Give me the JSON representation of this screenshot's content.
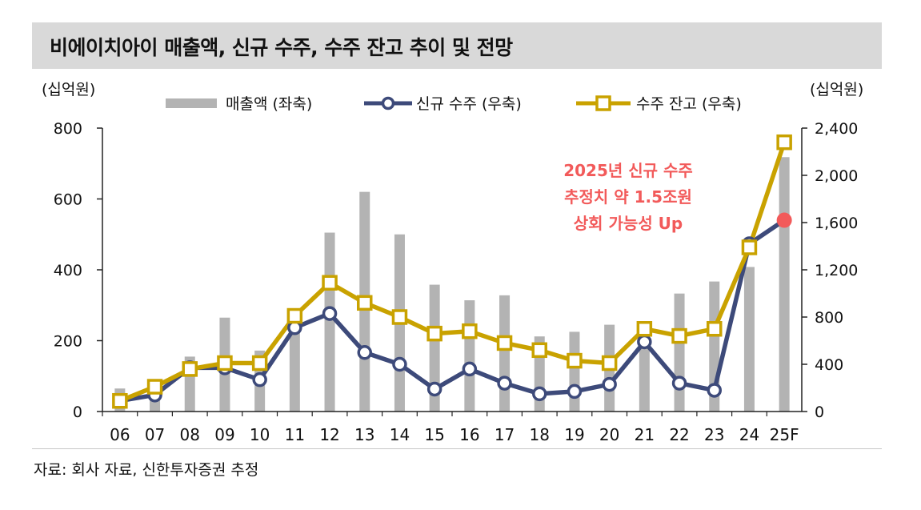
{
  "title": "비에이치아이 매출액, 신규 수주, 수주 잔고 추이 및 전망",
  "source": "자료: 회사 자료, 신한투자증권 추정",
  "colors": {
    "bar": "#b3b3b3",
    "new_orders": "#3d4a7a",
    "backlog": "#c9a200",
    "highlight": "#f25a5a",
    "annotation": "#f25a5a",
    "axis": "#222222"
  },
  "chart_data": {
    "type": "bar+line",
    "categories": [
      "06",
      "07",
      "08",
      "09",
      "10",
      "11",
      "12",
      "13",
      "14",
      "15",
      "16",
      "17",
      "18",
      "19",
      "20",
      "21",
      "22",
      "23",
      "24",
      "25F"
    ],
    "left_axis": {
      "label": "(십억원)",
      "min": 0,
      "max": 800,
      "ticks": [
        "0",
        "200",
        "400",
        "600",
        "800"
      ]
    },
    "right_axis": {
      "label": "(십억원)",
      "min": 0,
      "max": 2400,
      "ticks": [
        "0",
        "400",
        "800",
        "1,200",
        "1,600",
        "2,000",
        "2,400"
      ]
    },
    "series": [
      {
        "name": "매출액 (좌축)",
        "type": "bar",
        "axis": "left",
        "values": [
          65,
          50,
          155,
          265,
          172,
          240,
          505,
          620,
          500,
          358,
          314,
          328,
          212,
          225,
          245,
          230,
          333,
          367,
          408,
          718
        ]
      },
      {
        "name": "신규 수주 (우축)",
        "type": "line",
        "axis": "right",
        "marker": "circle",
        "values": [
          90,
          140,
          370,
          370,
          270,
          710,
          830,
          500,
          400,
          190,
          360,
          240,
          150,
          170,
          230,
          590,
          240,
          180,
          1420,
          1620
        ]
      },
      {
        "name": "수주 잔고 (우축)",
        "type": "line",
        "axis": "right",
        "marker": "square",
        "values": [
          90,
          210,
          360,
          410,
          410,
          810,
          1090,
          920,
          800,
          660,
          680,
          580,
          520,
          430,
          410,
          700,
          640,
          700,
          1390,
          2280
        ]
      }
    ],
    "annotation": {
      "lines": [
        "2025년 신규 수주",
        "추정치 약 1.5조원",
        "상회 가능성 Up"
      ],
      "highlight_series": "신규 수주 (우축)",
      "highlight_category": "25F"
    }
  }
}
